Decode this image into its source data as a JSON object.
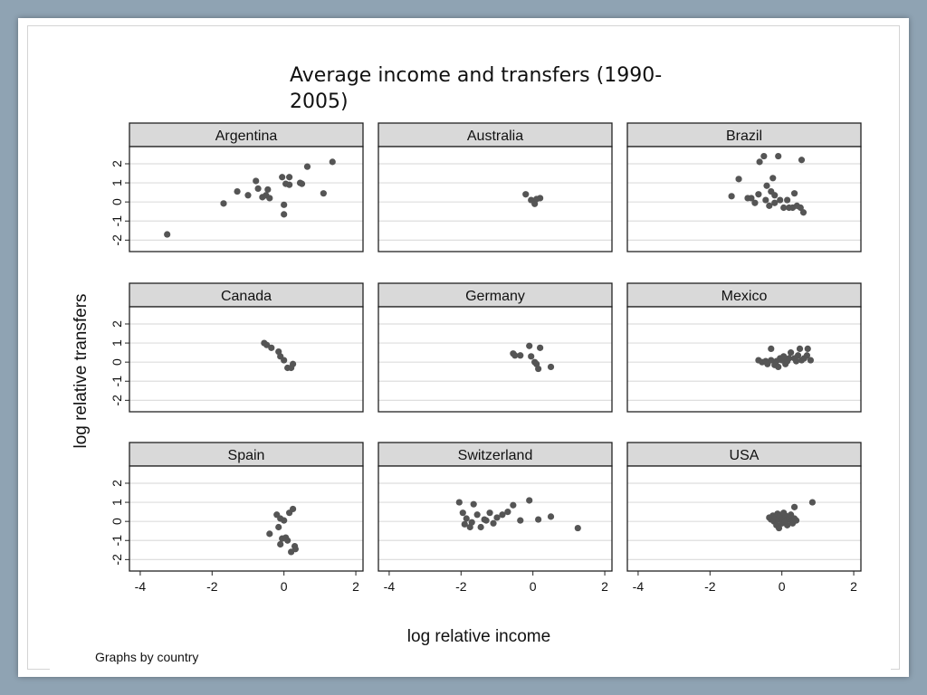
{
  "slide": {
    "title": "Average income and transfers (1990-2005)"
  },
  "chart_data": {
    "type": "scatter",
    "layout": "small multiples, 3x3",
    "ylabel": "log relative transfers",
    "xlabel": "log relative income",
    "note": "Graphs by country",
    "xlim": [
      -4.3,
      2.2
    ],
    "ylim": [
      -2.6,
      2.9
    ],
    "xticks": [
      -4,
      -2,
      0,
      2
    ],
    "yticks": [
      -2,
      -1,
      0,
      1,
      2
    ],
    "ytick_labels": [
      "-2",
      "-1",
      "0",
      "1",
      "2"
    ],
    "xtick_labels": [
      "-4",
      "-2",
      "0",
      "2"
    ],
    "grid": true,
    "colors": {
      "marker": "#555555",
      "header_fill": "#d9d9d9",
      "grid": "#dedede"
    },
    "panels": [
      {
        "name": "Argentina",
        "points": [
          [
            -3.25,
            -1.7
          ],
          [
            -1.68,
            -0.08
          ],
          [
            -1.3,
            0.55
          ],
          [
            -1.0,
            0.35
          ],
          [
            -0.78,
            1.1
          ],
          [
            -0.72,
            0.7
          ],
          [
            -0.6,
            0.25
          ],
          [
            -0.5,
            0.35
          ],
          [
            -0.45,
            0.65
          ],
          [
            -0.4,
            0.2
          ],
          [
            -0.05,
            1.3
          ],
          [
            0.05,
            0.95
          ],
          [
            0.15,
            1.3
          ],
          [
            0.15,
            0.9
          ],
          [
            0.0,
            -0.15
          ],
          [
            0.0,
            -0.65
          ],
          [
            0.45,
            1.0
          ],
          [
            0.5,
            0.95
          ],
          [
            0.65,
            1.85
          ],
          [
            1.1,
            0.45
          ],
          [
            1.35,
            2.1
          ]
        ]
      },
      {
        "name": "Australia",
        "points": [
          [
            -0.2,
            0.4
          ],
          [
            -0.05,
            0.1
          ],
          [
            0.05,
            -0.1
          ],
          [
            0.2,
            0.2
          ],
          [
            0.1,
            0.15
          ]
        ]
      },
      {
        "name": "Brazil",
        "points": [
          [
            -1.4,
            0.3
          ],
          [
            -1.2,
            1.2
          ],
          [
            -0.95,
            0.2
          ],
          [
            -0.85,
            0.2
          ],
          [
            -0.75,
            -0.05
          ],
          [
            -0.65,
            0.4
          ],
          [
            -0.62,
            2.1
          ],
          [
            -0.5,
            2.4
          ],
          [
            -0.45,
            0.1
          ],
          [
            -0.42,
            0.85
          ],
          [
            -0.35,
            -0.2
          ],
          [
            -0.3,
            0.55
          ],
          [
            -0.25,
            1.25
          ],
          [
            -0.2,
            0.35
          ],
          [
            -0.2,
            -0.05
          ],
          [
            -0.1,
            2.4
          ],
          [
            -0.05,
            0.1
          ],
          [
            0.05,
            -0.3
          ],
          [
            0.15,
            0.1
          ],
          [
            0.2,
            -0.3
          ],
          [
            0.3,
            -0.3
          ],
          [
            0.35,
            0.45
          ],
          [
            0.42,
            -0.2
          ],
          [
            0.52,
            -0.3
          ],
          [
            0.55,
            2.2
          ],
          [
            0.6,
            -0.55
          ]
        ]
      },
      {
        "name": "Canada",
        "points": [
          [
            -0.55,
            1.0
          ],
          [
            -0.48,
            0.9
          ],
          [
            -0.35,
            0.75
          ],
          [
            -0.15,
            0.55
          ],
          [
            -0.1,
            0.3
          ],
          [
            0.0,
            0.1
          ],
          [
            0.1,
            -0.3
          ],
          [
            0.2,
            -0.3
          ],
          [
            0.25,
            -0.1
          ]
        ]
      },
      {
        "name": "Germany",
        "points": [
          [
            -0.55,
            0.45
          ],
          [
            -0.5,
            0.35
          ],
          [
            -0.35,
            0.35
          ],
          [
            -0.1,
            0.85
          ],
          [
            -0.05,
            0.3
          ],
          [
            0.05,
            0.0
          ],
          [
            0.1,
            -0.1
          ],
          [
            0.15,
            -0.35
          ],
          [
            0.2,
            0.75
          ],
          [
            0.5,
            -0.25
          ]
        ]
      },
      {
        "name": "Mexico",
        "points": [
          [
            -0.65,
            0.1
          ],
          [
            -0.55,
            0.0
          ],
          [
            -0.45,
            0.05
          ],
          [
            -0.4,
            -0.1
          ],
          [
            -0.3,
            0.1
          ],
          [
            -0.3,
            0.7
          ],
          [
            -0.2,
            -0.15
          ],
          [
            -0.15,
            0.05
          ],
          [
            -0.1,
            -0.25
          ],
          [
            -0.05,
            0.2
          ],
          [
            0.0,
            0.1
          ],
          [
            0.05,
            0.3
          ],
          [
            0.1,
            -0.1
          ],
          [
            0.15,
            0.05
          ],
          [
            0.2,
            0.2
          ],
          [
            0.25,
            0.5
          ],
          [
            0.35,
            0.2
          ],
          [
            0.4,
            0.05
          ],
          [
            0.45,
            0.35
          ],
          [
            0.5,
            0.7
          ],
          [
            0.55,
            0.1
          ],
          [
            0.62,
            0.2
          ],
          [
            0.7,
            0.35
          ],
          [
            0.72,
            0.7
          ],
          [
            0.8,
            0.1
          ]
        ]
      },
      {
        "name": "Spain",
        "points": [
          [
            -0.4,
            -0.65
          ],
          [
            -0.2,
            0.35
          ],
          [
            -0.15,
            -0.3
          ],
          [
            -0.1,
            0.15
          ],
          [
            -0.1,
            -1.2
          ],
          [
            -0.05,
            -0.9
          ],
          [
            0.0,
            0.05
          ],
          [
            0.05,
            -0.85
          ],
          [
            0.1,
            -1.0
          ],
          [
            0.15,
            0.45
          ],
          [
            0.2,
            -1.6
          ],
          [
            0.25,
            0.65
          ],
          [
            0.3,
            -1.3
          ],
          [
            0.32,
            -1.45
          ]
        ]
      },
      {
        "name": "Switzerland",
        "points": [
          [
            -2.05,
            1.0
          ],
          [
            -1.95,
            0.45
          ],
          [
            -1.9,
            -0.15
          ],
          [
            -1.85,
            0.15
          ],
          [
            -1.75,
            -0.3
          ],
          [
            -1.7,
            -0.05
          ],
          [
            -1.65,
            0.9
          ],
          [
            -1.55,
            0.35
          ],
          [
            -1.45,
            -0.3
          ],
          [
            -1.35,
            0.1
          ],
          [
            -1.3,
            0.05
          ],
          [
            -1.2,
            0.45
          ],
          [
            -1.1,
            -0.1
          ],
          [
            -1.0,
            0.2
          ],
          [
            -0.85,
            0.35
          ],
          [
            -0.7,
            0.5
          ],
          [
            -0.55,
            0.85
          ],
          [
            -0.35,
            0.05
          ],
          [
            -0.1,
            1.1
          ],
          [
            0.15,
            0.1
          ],
          [
            0.5,
            0.25
          ],
          [
            1.25,
            -0.35
          ]
        ]
      },
      {
        "name": "USA",
        "points": [
          [
            -0.35,
            0.2
          ],
          [
            -0.3,
            0.1
          ],
          [
            -0.25,
            0.3
          ],
          [
            -0.22,
            0.0
          ],
          [
            -0.2,
            0.25
          ],
          [
            -0.15,
            -0.2
          ],
          [
            -0.12,
            0.4
          ],
          [
            -0.1,
            0.1
          ],
          [
            -0.08,
            -0.35
          ],
          [
            -0.05,
            0.3
          ],
          [
            0.0,
            -0.1
          ],
          [
            0.02,
            0.15
          ],
          [
            0.05,
            0.45
          ],
          [
            0.08,
            -0.05
          ],
          [
            0.1,
            0.3
          ],
          [
            0.12,
            0.05
          ],
          [
            0.15,
            -0.2
          ],
          [
            0.2,
            0.15
          ],
          [
            0.25,
            0.35
          ],
          [
            0.28,
            0.0
          ],
          [
            0.3,
            -0.1
          ],
          [
            0.35,
            0.15
          ],
          [
            0.4,
            0.05
          ],
          [
            0.85,
            1.0
          ],
          [
            0.35,
            0.75
          ]
        ]
      }
    ]
  }
}
